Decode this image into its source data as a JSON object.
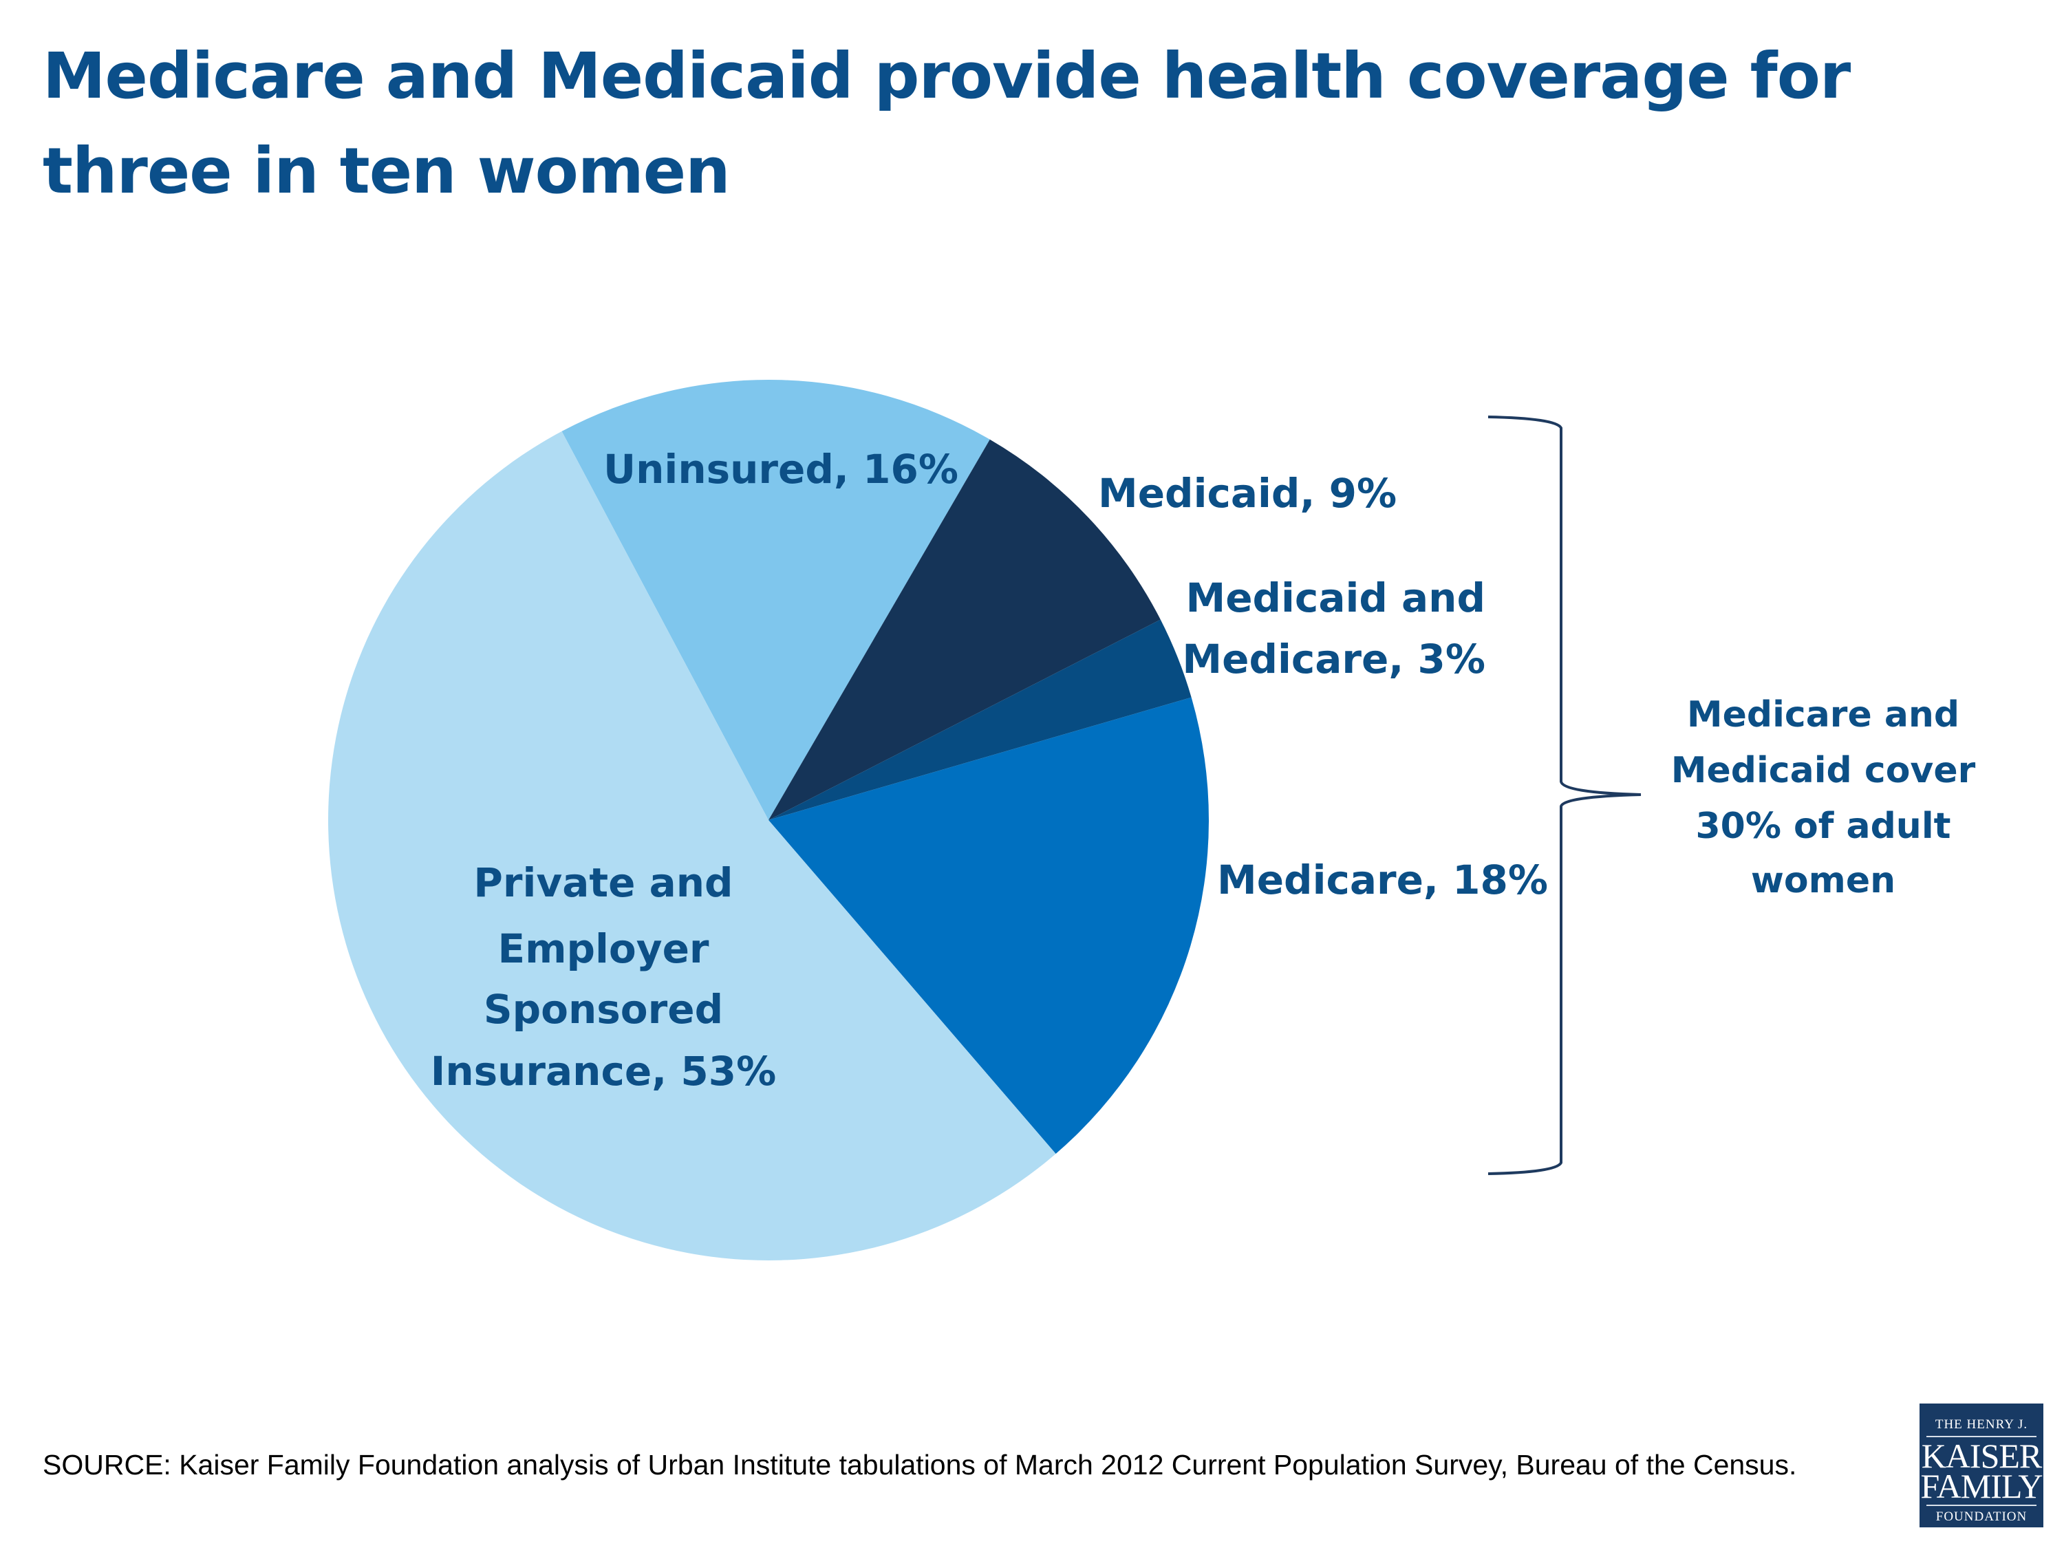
{
  "title": "Medicare and Medicaid provide health coverage for three in ten women",
  "chart_data": {
    "type": "pie",
    "title": "Medicare and Medicaid provide health coverage for three in ten women",
    "slices": [
      {
        "label": "Uninsured, 16%",
        "name": "Uninsured",
        "value": 16,
        "color": "#7fc6ed"
      },
      {
        "label": "Medicaid, 9%",
        "name": "Medicaid",
        "value": 9,
        "color": "#153458"
      },
      {
        "label_lines": [
          "Medicaid and",
          "Medicare, 3%"
        ],
        "name": "Medicaid and Medicare",
        "value": 3,
        "color": "#074c82"
      },
      {
        "label": "Medicare, 18%",
        "name": "Medicare",
        "value": 18,
        "color": "#0070c0"
      },
      {
        "label_lines": [
          "Private and",
          "Employer",
          "Sponsored",
          "Insurance, 53%"
        ],
        "name": "Private and Employer Sponsored Insurance",
        "value": 53,
        "color": "#b0dcf3"
      }
    ],
    "annotation": {
      "lines": [
        "Medicare and",
        "Medicaid cover",
        "30% of adult",
        "women"
      ],
      "bracket_spans": [
        "Medicaid",
        "Medicaid and Medicare",
        "Medicare"
      ]
    }
  },
  "source": "SOURCE:  Kaiser Family Foundation analysis of Urban Institute tabulations of March 2012 Current Population Survey, Bureau of the Census.",
  "logo": {
    "line1": "THE HENRY J.",
    "line2": "KAISER",
    "line3": "FAMILY",
    "line4": "FOUNDATION"
  },
  "colors": {
    "title": "#0b4f8a",
    "labels": "#0c4f86",
    "bracket": "#1e3a5f"
  }
}
